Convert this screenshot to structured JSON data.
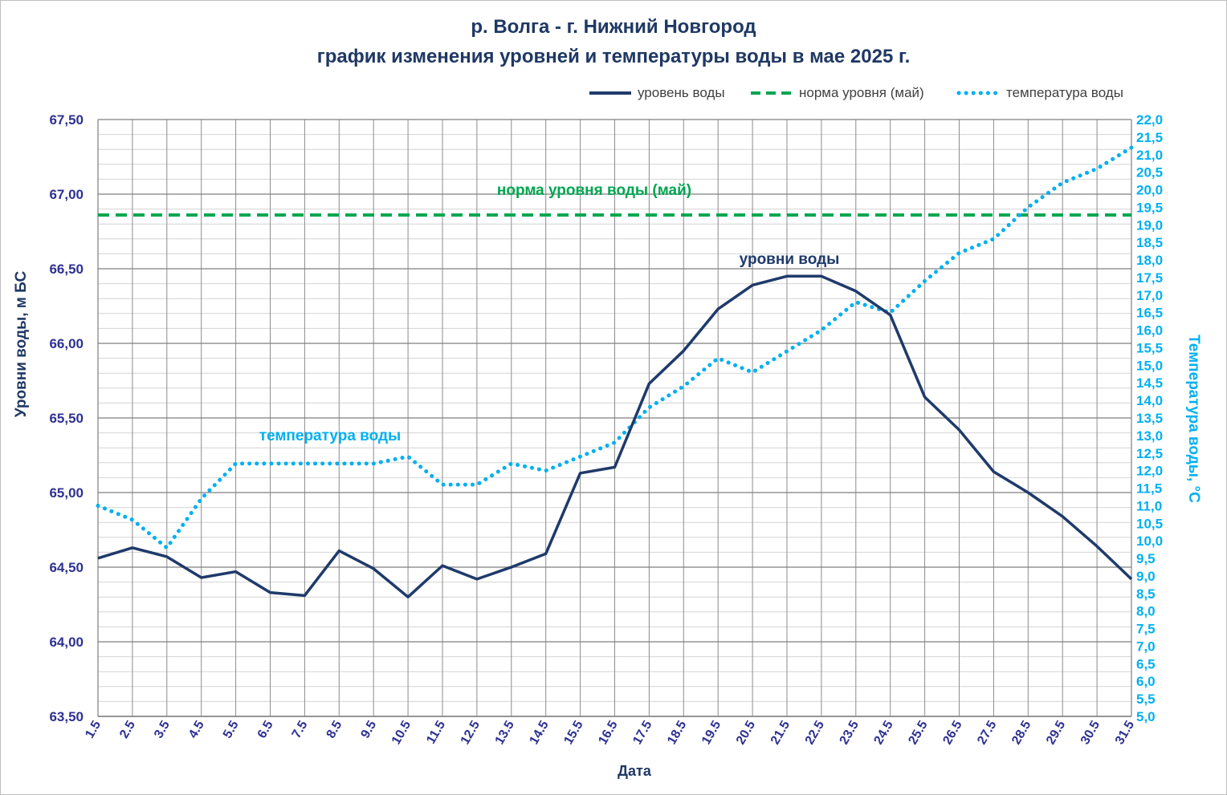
{
  "title_line1": "р. Волга - г. Нижний Новгород",
  "title_line2": "график изменения уровней и температуры  воды в мае 2025 г.",
  "legend": [
    {
      "label": "уровень воды",
      "style": "solid",
      "color": "#1f3a6b"
    },
    {
      "label": "норма уровня (май)",
      "style": "dashed",
      "color": "#00a650"
    },
    {
      "label": "температура воды",
      "style": "dotted",
      "color": "#00b0f0"
    }
  ],
  "chart_data": {
    "type": "line",
    "categories": [
      "1.5",
      "2.5",
      "3.5",
      "4.5",
      "5.5",
      "6.5",
      "7.5",
      "8.5",
      "9.5",
      "10.5",
      "11.5",
      "12.5",
      "13.5",
      "14.5",
      "15.5",
      "16.5",
      "17.5",
      "18.5",
      "19.5",
      "20.5",
      "21.5",
      "22.5",
      "23.5",
      "24.5",
      "25.5",
      "26.5",
      "27.5",
      "28.5",
      "29.5",
      "30.5",
      "31.5"
    ],
    "xlabel": "Дата",
    "y_left": {
      "label": "Уровни воды, м БС",
      "min": 63.5,
      "max": 67.5,
      "step": 0.5,
      "ticks": [
        "63,50",
        "64,00",
        "64,50",
        "65,00",
        "65,50",
        "66,00",
        "66,50",
        "67,00",
        "67,50"
      ]
    },
    "y_right": {
      "label": "Температура воды, °С",
      "min": 5.0,
      "max": 22.0,
      "step": 0.5,
      "ticks": [
        "5,0",
        "5,5",
        "6,0",
        "6,5",
        "7,0",
        "7,5",
        "8,0",
        "8,5",
        "9,0",
        "9,5",
        "10,0",
        "10,5",
        "11,0",
        "11,5",
        "12,0",
        "12,5",
        "13,0",
        "13,5",
        "14,0",
        "14,5",
        "15,0",
        "15,5",
        "16,0",
        "16,5",
        "17,0",
        "17,5",
        "18,0",
        "18,5",
        "19,0",
        "19,5",
        "20,0",
        "20,5",
        "21,0",
        "21,5",
        "22,0"
      ]
    },
    "series": [
      {
        "name": "уровень воды",
        "axis": "left",
        "color": "#1f3a6b",
        "values": [
          64.56,
          64.63,
          64.57,
          64.43,
          64.47,
          64.33,
          64.31,
          64.61,
          64.49,
          64.3,
          64.51,
          64.42,
          64.5,
          64.59,
          65.13,
          65.17,
          65.73,
          65.95,
          66.23,
          66.39,
          66.45,
          66.45,
          66.35,
          66.19,
          65.64,
          65.42,
          65.14,
          65.0,
          64.84,
          64.64,
          64.42
        ]
      },
      {
        "name": "норма уровня (май)",
        "axis": "left",
        "color": "#00a650",
        "constant": 66.86
      },
      {
        "name": "температура воды",
        "axis": "right",
        "color": "#00b0f0",
        "values": [
          11.0,
          10.6,
          9.8,
          11.2,
          12.2,
          12.2,
          12.2,
          12.2,
          12.2,
          12.4,
          11.6,
          11.6,
          12.2,
          12.0,
          12.4,
          12.8,
          13.8,
          14.4,
          15.2,
          14.8,
          15.4,
          16.0,
          16.8,
          16.5,
          17.4,
          18.2,
          18.6,
          19.5,
          20.2,
          20.6,
          21.2
        ]
      }
    ],
    "annotations": {
      "norm": "норма уровня воды  (май)",
      "level": "уровни воды",
      "temperature": "температура воды"
    }
  }
}
